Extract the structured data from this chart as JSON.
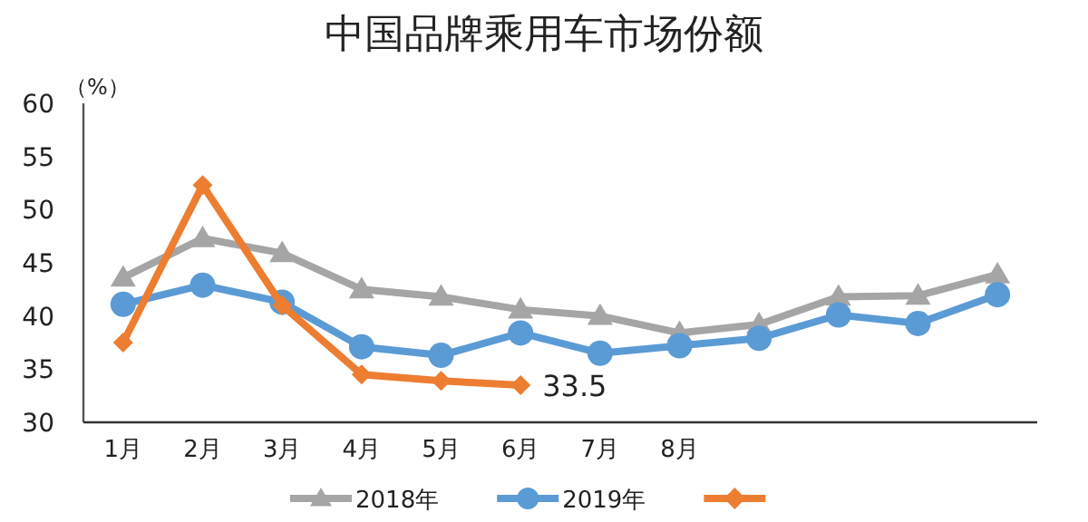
{
  "chart_data": {
    "type": "line",
    "title": "中国品牌乘用车市场份额",
    "ylabel": "（%）",
    "categories": [
      "1月",
      "2月",
      "3月",
      "4月",
      "5月",
      "6月",
      "7月",
      "8月",
      null,
      null,
      null,
      null
    ],
    "ylim": [
      30,
      60
    ],
    "yticks": [
      30,
      35,
      40,
      45,
      50,
      55,
      60
    ],
    "grid": false,
    "legend": "bottom",
    "series": [
      {
        "name": "2018年",
        "color": "#a5a5a5",
        "marker": "triangle",
        "values": [
          43.6,
          47.3,
          45.9,
          42.5,
          41.8,
          40.6,
          40.0,
          38.4,
          39.2,
          41.8,
          41.9,
          43.9
        ]
      },
      {
        "name": "2019年",
        "color": "#5b9bd5",
        "marker": "circle",
        "values": [
          41.1,
          42.9,
          41.3,
          37.1,
          36.3,
          38.4,
          36.5,
          37.2,
          37.9,
          40.1,
          39.3,
          42.0
        ]
      },
      {
        "color": "#ed7d31",
        "marker": "diamond",
        "values": [
          37.5,
          52.3,
          41.0,
          34.5,
          33.9,
          33.5,
          null,
          null,
          null,
          null,
          null,
          null
        ],
        "value_labels": [
          null,
          null,
          null,
          null,
          null,
          "33.5",
          null,
          null,
          null,
          null,
          null,
          null
        ]
      }
    ]
  }
}
